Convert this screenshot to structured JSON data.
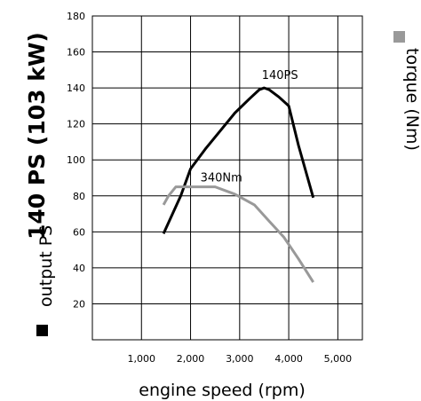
{
  "chart_data": {
    "type": "line",
    "title": "140 PS (103 kW)",
    "xlabel": "engine speed (rpm)",
    "ylabel": "output PS",
    "secondary_ylabel": "torque (Nm)",
    "xlim": [
      0,
      5500
    ],
    "ylim": [
      0,
      180
    ],
    "x_ticks": [
      {
        "value": 1000,
        "label": "1,000"
      },
      {
        "value": 2000,
        "label": "2,000"
      },
      {
        "value": 3000,
        "label": "3,000"
      },
      {
        "value": 4000,
        "label": "4,000"
      },
      {
        "value": 5000,
        "label": "5,000"
      }
    ],
    "y_ticks": [
      {
        "value": 20,
        "label": "20"
      },
      {
        "value": 40,
        "label": "40"
      },
      {
        "value": 60,
        "label": "60"
      },
      {
        "value": 80,
        "label": "80"
      },
      {
        "value": 100,
        "label": "100"
      },
      {
        "value": 120,
        "label": "120"
      },
      {
        "value": 140,
        "label": "140"
      },
      {
        "value": 160,
        "label": "160"
      },
      {
        "value": 180,
        "label": "180"
      }
    ],
    "grid": true,
    "series": [
      {
        "name": "output",
        "color": "#000000",
        "x": [
          1450,
          1600,
          1800,
          2000,
          2300,
          2600,
          2900,
          3200,
          3400,
          3500,
          3600,
          3800,
          4000,
          4200,
          4500
        ],
        "y": [
          59,
          68,
          80,
          95,
          106,
          116,
          126,
          134,
          139,
          140,
          139,
          135,
          130,
          108,
          79
        ]
      },
      {
        "name": "torque",
        "color": "#999999",
        "x": [
          1450,
          1550,
          1700,
          2000,
          2500,
          2900,
          3300,
          3600,
          3900,
          4200,
          4500
        ],
        "y": [
          75,
          80,
          85,
          85,
          85,
          81,
          75,
          66,
          57,
          45,
          32
        ]
      }
    ],
    "annotations": [
      {
        "text": "140PS",
        "x": 3450,
        "y": 145
      },
      {
        "text": "340Nm",
        "x": 2200,
        "y": 88
      }
    ]
  },
  "colors": {
    "output": "#000000",
    "torque": "#999999",
    "grid": "#000000"
  }
}
